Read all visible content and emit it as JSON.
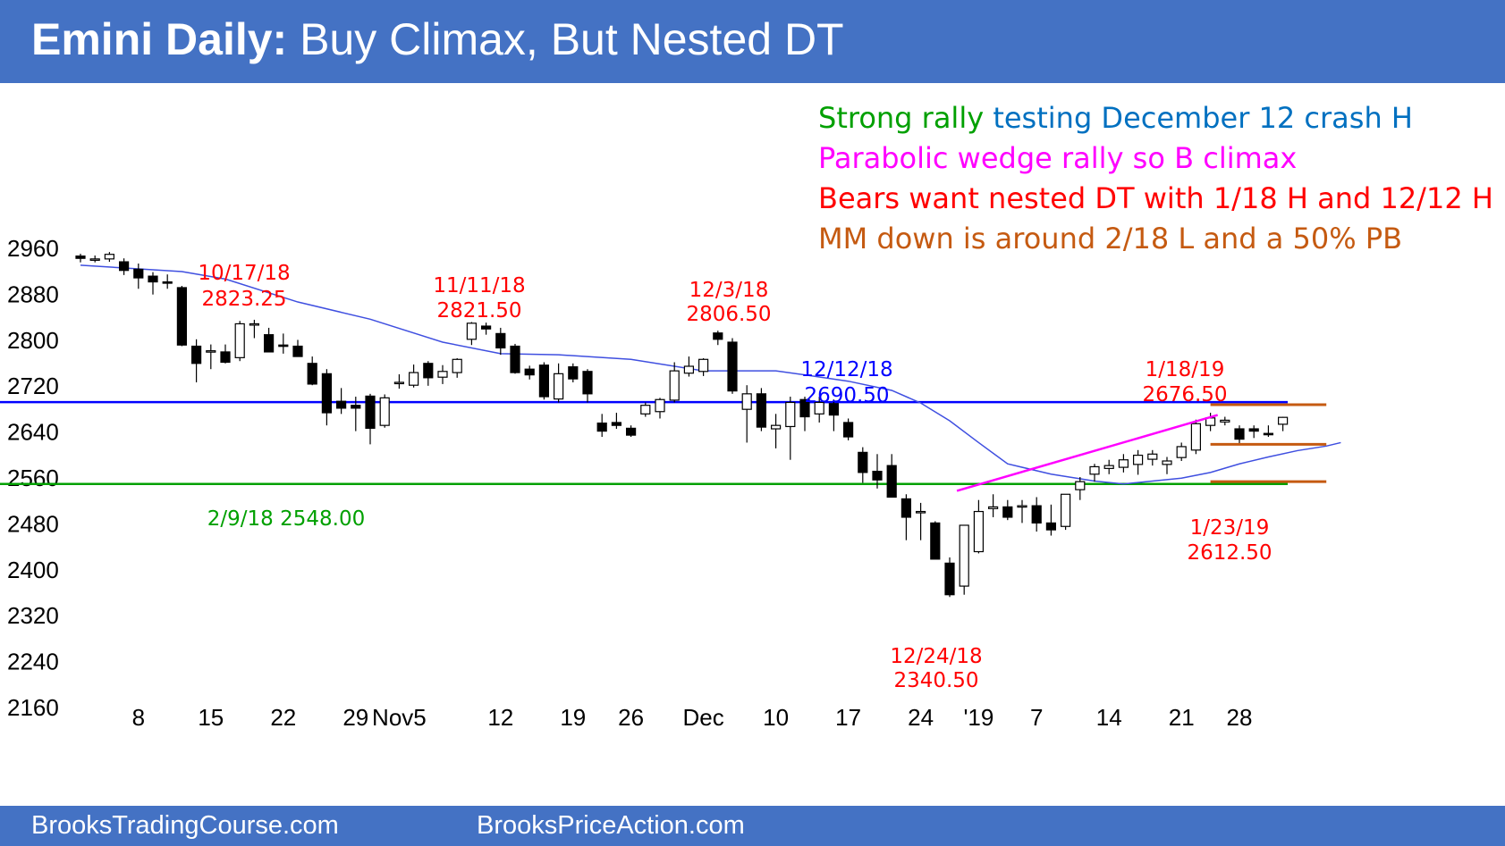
{
  "header": {
    "title_bold": "Emini Daily:",
    "title_rest": " Buy Climax, But Nested DT",
    "background": "#4472c4"
  },
  "footer": {
    "left": "BrooksTradingCourse.com",
    "right": "BrooksPriceAction.com"
  },
  "annotations": {
    "line1_green": "Strong rally ",
    "line1_blue": "testing December 12 crash H",
    "line2": "Parabolic wedge rally so B climax",
    "line3": "Bears want nested DT with 1/18 H and 12/12 H",
    "line4": "MM down is around 2/18 L and a 50% PB",
    "colors": {
      "green": "#00a000",
      "blue": "#0070c0",
      "magenta": "#ff00ff",
      "red": "#ff0000",
      "orange": "#c55a11"
    }
  },
  "chart_data": {
    "type": "candlestick",
    "y_ticks": [
      2960,
      2880,
      2800,
      2720,
      2640,
      2560,
      2480,
      2400,
      2320,
      2240,
      2160
    ],
    "ylim": [
      2140,
      2990
    ],
    "x_labels": [
      {
        "i": 4,
        "text": "8"
      },
      {
        "i": 9,
        "text": "15"
      },
      {
        "i": 14,
        "text": "22"
      },
      {
        "i": 19,
        "text": "29"
      },
      {
        "i": 22,
        "text": "Nov5"
      },
      {
        "i": 29,
        "text": "12"
      },
      {
        "i": 34,
        "text": "19"
      },
      {
        "i": 38,
        "text": "26"
      },
      {
        "i": 43,
        "text": "Dec"
      },
      {
        "i": 48,
        "text": "10"
      },
      {
        "i": 53,
        "text": "17"
      },
      {
        "i": 58,
        "text": "24"
      },
      {
        "i": 62,
        "text": "'19"
      },
      {
        "i": 66,
        "text": "7"
      },
      {
        "i": 71,
        "text": "14"
      },
      {
        "i": 76,
        "text": "21"
      },
      {
        "i": 80,
        "text": "28"
      }
    ],
    "candles": [
      [
        2945,
        2949,
        2934,
        2941
      ],
      [
        2939,
        2946,
        2934,
        2940
      ],
      [
        2940,
        2952,
        2935,
        2948
      ],
      [
        2935,
        2941,
        2912,
        2920
      ],
      [
        2922,
        2932,
        2888,
        2907
      ],
      [
        2910,
        2917,
        2878,
        2900
      ],
      [
        2900,
        2913,
        2888,
        2898
      ],
      [
        2890,
        2893,
        2788,
        2790
      ],
      [
        2788,
        2800,
        2725,
        2758
      ],
      [
        2778,
        2791,
        2748,
        2780
      ],
      [
        2778,
        2791,
        2758,
        2760
      ],
      [
        2768,
        2832,
        2762,
        2827
      ],
      [
        2826,
        2834,
        2802,
        2827
      ],
      [
        2808,
        2820,
        2778,
        2778
      ],
      [
        2790,
        2810,
        2775,
        2789
      ],
      [
        2788,
        2799,
        2770,
        2770
      ],
      [
        2758,
        2770,
        2720,
        2722
      ],
      [
        2740,
        2748,
        2650,
        2672
      ],
      [
        2692,
        2715,
        2670,
        2680
      ],
      [
        2685,
        2700,
        2640,
        2680
      ],
      [
        2701,
        2705,
        2617,
        2645
      ],
      [
        2650,
        2704,
        2646,
        2698
      ],
      [
        2725,
        2739,
        2714,
        2725
      ],
      [
        2720,
        2756,
        2716,
        2742
      ],
      [
        2758,
        2762,
        2719,
        2733
      ],
      [
        2734,
        2755,
        2722,
        2744
      ],
      [
        2742,
        2767,
        2733,
        2765
      ],
      [
        2800,
        2830,
        2790,
        2828
      ],
      [
        2823,
        2829,
        2808,
        2818
      ],
      [
        2810,
        2820,
        2773,
        2785
      ],
      [
        2788,
        2792,
        2740,
        2742
      ],
      [
        2748,
        2754,
        2730,
        2738
      ],
      [
        2755,
        2760,
        2695,
        2700
      ],
      [
        2696,
        2758,
        2690,
        2740
      ],
      [
        2752,
        2758,
        2725,
        2731
      ],
      [
        2744,
        2748,
        2690,
        2705
      ],
      [
        2654,
        2670,
        2630,
        2640
      ],
      [
        2655,
        2672,
        2644,
        2650
      ],
      [
        2645,
        2650,
        2630,
        2633
      ],
      [
        2670,
        2690,
        2665,
        2685
      ],
      [
        2674,
        2698,
        2662,
        2695
      ],
      [
        2694,
        2760,
        2690,
        2745
      ],
      [
        2741,
        2770,
        2735,
        2753
      ],
      [
        2744,
        2767,
        2736,
        2765
      ],
      [
        2811,
        2815,
        2790,
        2800
      ],
      [
        2795,
        2802,
        2705,
        2710
      ],
      [
        2678,
        2720,
        2620,
        2705
      ],
      [
        2705,
        2715,
        2640,
        2647
      ],
      [
        2644,
        2670,
        2610,
        2650
      ],
      [
        2648,
        2700,
        2590,
        2690
      ],
      [
        2695,
        2700,
        2640,
        2665
      ],
      [
        2670,
        2700,
        2655,
        2690
      ],
      [
        2688,
        2695,
        2640,
        2668
      ],
      [
        2655,
        2662,
        2624,
        2630
      ],
      [
        2603,
        2612,
        2550,
        2568
      ],
      [
        2570,
        2600,
        2540,
        2555
      ],
      [
        2580,
        2600,
        2525,
        2525
      ],
      [
        2522,
        2530,
        2450,
        2490
      ],
      [
        2500,
        2515,
        2450,
        2500
      ],
      [
        2480,
        2483,
        2417,
        2417
      ],
      [
        2410,
        2420,
        2351,
        2355
      ],
      [
        2370,
        2476,
        2355,
        2476
      ],
      [
        2430,
        2520,
        2427,
        2500
      ],
      [
        2505,
        2530,
        2490,
        2508
      ],
      [
        2508,
        2520,
        2485,
        2490
      ],
      [
        2510,
        2520,
        2480,
        2510
      ],
      [
        2510,
        2525,
        2465,
        2480
      ],
      [
        2480,
        2512,
        2458,
        2468
      ],
      [
        2474,
        2530,
        2468,
        2530
      ],
      [
        2538,
        2560,
        2520,
        2552
      ],
      [
        2565,
        2583,
        2552,
        2578
      ],
      [
        2575,
        2590,
        2565,
        2580
      ],
      [
        2577,
        2600,
        2568,
        2590
      ],
      [
        2582,
        2607,
        2564,
        2598
      ],
      [
        2591,
        2607,
        2580,
        2600
      ],
      [
        2582,
        2595,
        2565,
        2588
      ],
      [
        2594,
        2620,
        2588,
        2613
      ],
      [
        2607,
        2660,
        2600,
        2653
      ],
      [
        2650,
        2672,
        2640,
        2663
      ],
      [
        2656,
        2665,
        2650,
        2659
      ],
      [
        2644,
        2650,
        2618,
        2626
      ],
      [
        2644,
        2650,
        2628,
        2640
      ],
      [
        2636,
        2650,
        2630,
        2635
      ],
      [
        2652,
        2665,
        2640,
        2664
      ]
    ],
    "ema_20": [
      [
        0,
        2929
      ],
      [
        7,
        2918
      ],
      [
        10,
        2905
      ],
      [
        15,
        2865
      ],
      [
        20,
        2835
      ],
      [
        25,
        2795
      ],
      [
        29,
        2775
      ],
      [
        33,
        2773
      ],
      [
        38,
        2765
      ],
      [
        43,
        2745
      ],
      [
        48,
        2745
      ],
      [
        50,
        2738
      ],
      [
        53,
        2727
      ],
      [
        56,
        2711
      ],
      [
        58,
        2689
      ],
      [
        60,
        2658
      ],
      [
        62,
        2620
      ],
      [
        64,
        2583
      ],
      [
        67,
        2565
      ],
      [
        70,
        2553
      ],
      [
        72,
        2548
      ],
      [
        74,
        2553
      ],
      [
        76,
        2558
      ],
      [
        78,
        2568
      ],
      [
        80,
        2583
      ],
      [
        82,
        2595
      ],
      [
        84,
        2606
      ],
      [
        86,
        2614
      ],
      [
        87,
        2620
      ]
    ],
    "price_labels": [
      {
        "date": "10/17/18",
        "price": "2823.25",
        "color": "#ff0000"
      },
      {
        "date": "11/11/18",
        "price": "2821.50",
        "color": "#ff0000"
      },
      {
        "date": "12/3/18",
        "price": "2806.50",
        "color": "#ff0000"
      },
      {
        "date": "12/12/18",
        "price": "2690.50",
        "color": "#0000ff"
      },
      {
        "date": "1/18/19",
        "price": "2676.50",
        "color": "#ff0000"
      },
      {
        "date": "12/24/18",
        "price": "2340.50",
        "color": "#ff0000"
      },
      {
        "date": "1/23/19",
        "price": "2612.50",
        "color": "#ff0000"
      },
      {
        "text": "2/9/18 2548.00",
        "color": "#00a000"
      }
    ],
    "lines": [
      {
        "name": "crash-high-line",
        "y": 2690.5,
        "color": "#0000ff"
      },
      {
        "name": "support-2548",
        "y": 2548,
        "color": "#00a000"
      }
    ],
    "wedge_line": {
      "from": [
        2536,
        2545
      ],
      "to": [
        2668,
        2680
      ],
      "color": "#ff00ff"
    },
    "range_lines": [
      2686,
      2617,
      2552
    ],
    "colors": {
      "up": "#ffffff",
      "down": "#000000",
      "ema": "#3f4fe0",
      "orange": "#c55a11"
    }
  }
}
